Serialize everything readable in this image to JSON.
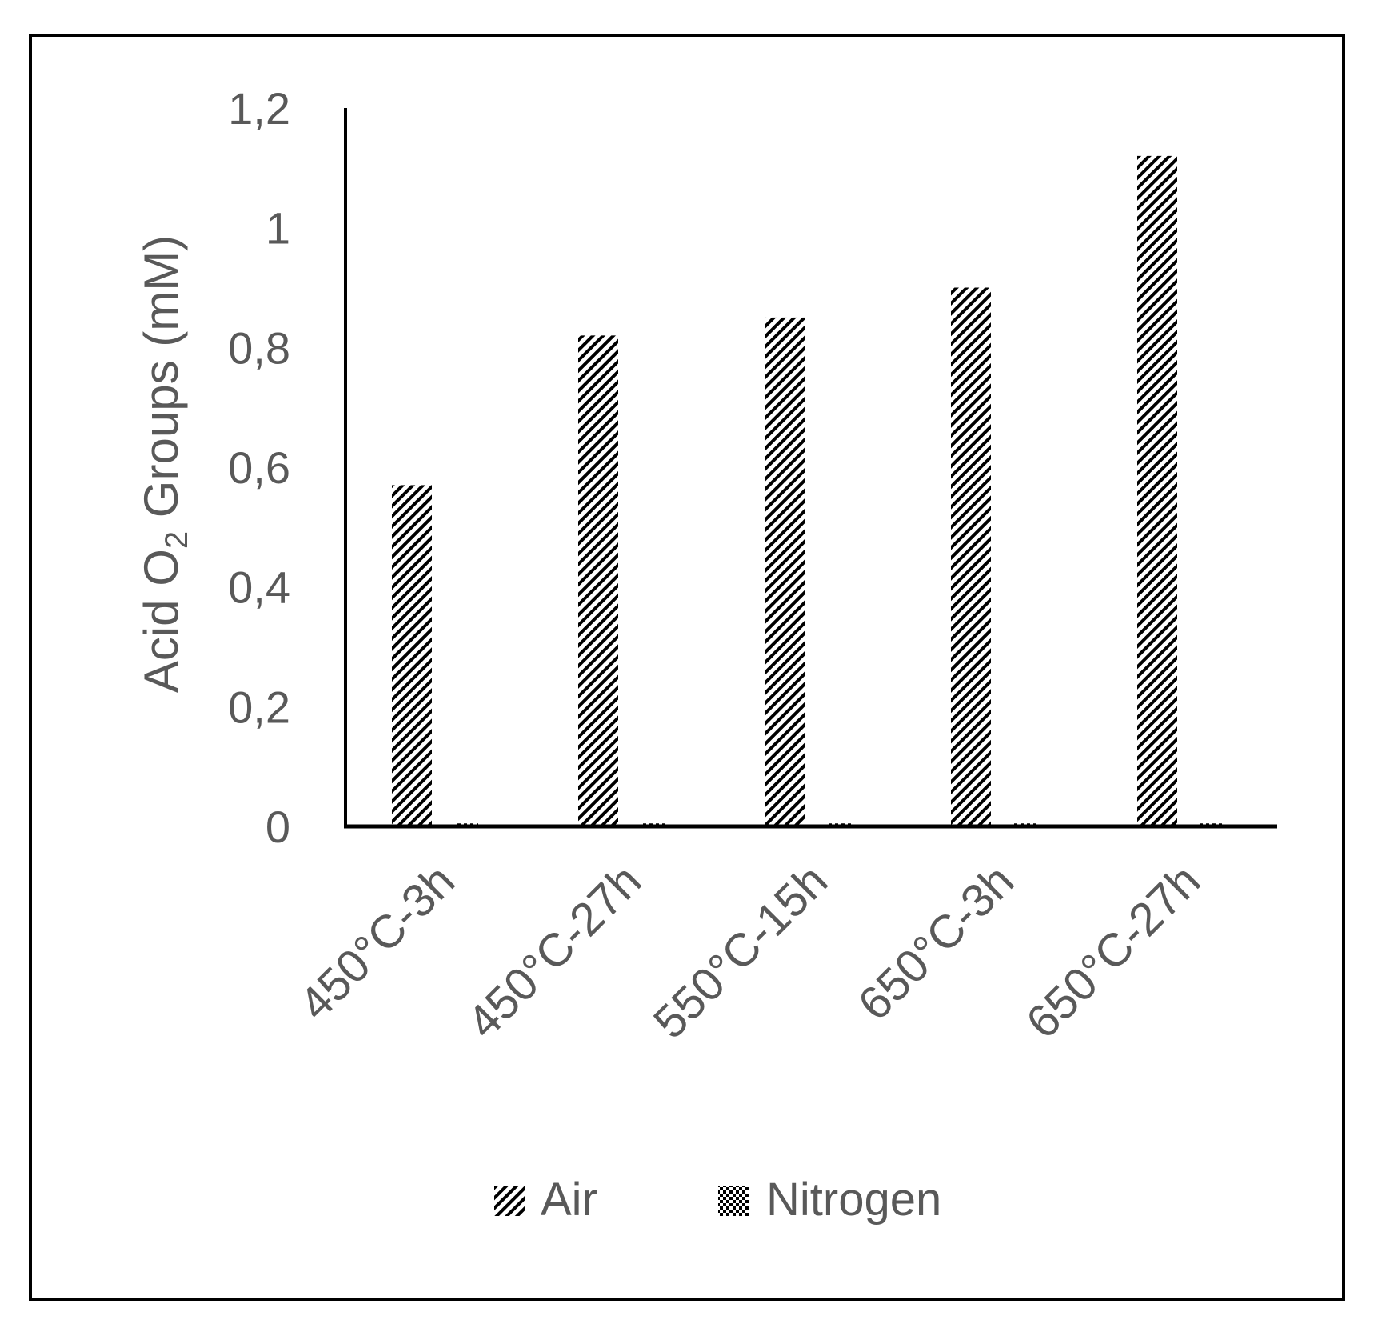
{
  "chart_data": {
    "type": "bar",
    "title": "",
    "xlabel": "",
    "ylabel": {
      "prefix": "Acid O",
      "subscript": "2",
      "suffix": " Groups (mM)"
    },
    "ylim": [
      0,
      1.2
    ],
    "yticks": [
      "0",
      "0,2",
      "0,4",
      "0,6",
      "0,8",
      "1",
      "1,2"
    ],
    "ytick_values": [
      0,
      0.2,
      0.4,
      0.6,
      0.8,
      1.0,
      1.2
    ],
    "categories": [
      "450°C-3h",
      "450°C-27h",
      "550°C-15h",
      "650°C-3h",
      "650°C-27h"
    ],
    "series": [
      {
        "name": "Air",
        "values": [
          0.57,
          0.82,
          0.85,
          0.9,
          1.12
        ],
        "pattern": "diagonal-hatch"
      },
      {
        "name": "Nitrogen",
        "values": [
          0.005,
          0.005,
          0.005,
          0.005,
          0.005
        ],
        "pattern": "checker"
      }
    ],
    "grid": false,
    "legend_position": "bottom",
    "colors": {
      "bar_ink": "#000000",
      "text": "#595959",
      "axis": "#000000",
      "frame": "#000000"
    }
  }
}
